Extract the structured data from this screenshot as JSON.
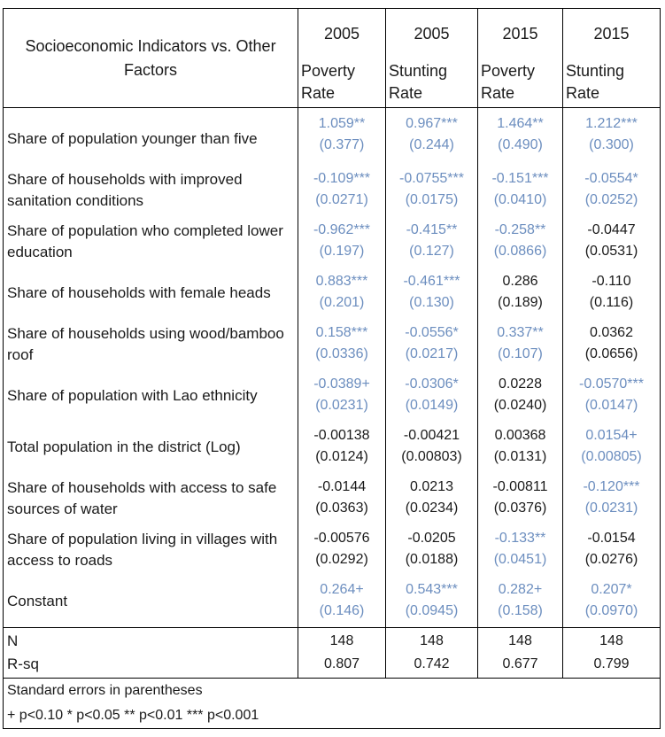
{
  "header": {
    "label": "Socioeconomic Indicators vs. Other Factors",
    "years": [
      "2005",
      "2005",
      "2015",
      "2015"
    ],
    "subheads": [
      "Poverty Rate",
      "Stunting Rate",
      "Poverty Rate",
      "Stunting Rate"
    ]
  },
  "rows": [
    {
      "label": "Share of population younger than five",
      "cells": [
        {
          "coef": "1.059**",
          "se": "(0.377)",
          "sig": true
        },
        {
          "coef": "0.967***",
          "se": "(0.244)",
          "sig": true
        },
        {
          "coef": "1.464**",
          "se": "(0.490)",
          "sig": true
        },
        {
          "coef": "1.212***",
          "se": "(0.300)",
          "sig": true
        }
      ]
    },
    {
      "label": "Share of households with improved sanitation conditions",
      "cells": [
        {
          "coef": "-0.109***",
          "se": "(0.0271)",
          "sig": true
        },
        {
          "coef": "-0.0755***",
          "se": "(0.0175)",
          "sig": true
        },
        {
          "coef": "-0.151***",
          "se": "(0.0410)",
          "sig": true
        },
        {
          "coef": "-0.0554*",
          "se": "(0.0252)",
          "sig": true
        }
      ]
    },
    {
      "label": "Share of population who completed lower education",
      "cells": [
        {
          "coef": "-0.962***",
          "se": "(0.197)",
          "sig": true
        },
        {
          "coef": "-0.415**",
          "se": "(0.127)",
          "sig": true
        },
        {
          "coef": "-0.258**",
          "se": "(0.0866)",
          "sig": true
        },
        {
          "coef": "-0.0447",
          "se": "(0.0531)",
          "sig": false
        }
      ]
    },
    {
      "label": "Share of households with female heads",
      "cells": [
        {
          "coef": "0.883***",
          "se": "(0.201)",
          "sig": true
        },
        {
          "coef": "-0.461***",
          "se": "(0.130)",
          "sig": true
        },
        {
          "coef": "0.286",
          "se": "(0.189)",
          "sig": false
        },
        {
          "coef": "-0.110",
          "se": "(0.116)",
          "sig": false
        }
      ]
    },
    {
      "label": "Share of households using wood/bamboo roof",
      "cells": [
        {
          "coef": "0.158***",
          "se": "(0.0336)",
          "sig": true
        },
        {
          "coef": "-0.0556*",
          "se": "(0.0217)",
          "sig": true
        },
        {
          "coef": "0.337**",
          "se": "(0.107)",
          "sig": true
        },
        {
          "coef": "0.0362",
          "se": "(0.0656)",
          "sig": false
        }
      ]
    },
    {
      "label": "Share of population with Lao ethnicity",
      "cells": [
        {
          "coef": "-0.0389+",
          "se": "(0.0231)",
          "sig": true
        },
        {
          "coef": "-0.0306*",
          "se": "(0.0149)",
          "sig": true
        },
        {
          "coef": "0.0228",
          "se": "(0.0240)",
          "sig": false
        },
        {
          "coef": "-0.0570***",
          "se": "(0.0147)",
          "sig": true
        }
      ]
    },
    {
      "label": "Total population in the district (Log)",
      "cells": [
        {
          "coef": "-0.00138",
          "se": "(0.0124)",
          "sig": false
        },
        {
          "coef": "-0.00421",
          "se": "(0.00803)",
          "sig": false
        },
        {
          "coef": "0.00368",
          "se": "(0.0131)",
          "sig": false
        },
        {
          "coef": "0.0154+",
          "se": "(0.00805)",
          "sig": true
        }
      ]
    },
    {
      "label": "Share of households with access to safe sources of water",
      "cells": [
        {
          "coef": "-0.0144",
          "se": "(0.0363)",
          "sig": false
        },
        {
          "coef": "0.0213",
          "se": "(0.0234)",
          "sig": false
        },
        {
          "coef": "-0.00811",
          "se": "(0.0376)",
          "sig": false
        },
        {
          "coef": "-0.120***",
          "se": "(0.0231)",
          "sig": true
        }
      ]
    },
    {
      "label": "Share of population living in villages with access to roads",
      "cells": [
        {
          "coef": "-0.00576",
          "se": "(0.0292)",
          "sig": false
        },
        {
          "coef": "-0.0205",
          "se": "(0.0188)",
          "sig": false
        },
        {
          "coef": "-0.133**",
          "se": "(0.0451)",
          "sig": true
        },
        {
          "coef": "-0.0154",
          "se": "(0.0276)",
          "sig": false
        }
      ]
    },
    {
      "label": "Constant",
      "cells": [
        {
          "coef": "0.264+",
          "se": "(0.146)",
          "sig": true
        },
        {
          "coef": "0.543***",
          "se": "(0.0945)",
          "sig": true
        },
        {
          "coef": "0.282+",
          "se": "(0.158)",
          "sig": true
        },
        {
          "coef": "0.207*",
          "se": "(0.0970)",
          "sig": true
        }
      ]
    }
  ],
  "stats": [
    {
      "label": "N",
      "values": [
        "148",
        "148",
        "148",
        "148"
      ]
    },
    {
      "label": "R-sq",
      "values": [
        "0.807",
        "0.742",
        "0.677",
        "0.799"
      ]
    }
  ],
  "notes": [
    "Standard errors in parentheses",
    "+ p<0.10 * p<0.05 ** p<0.01 *** p<0.001"
  ],
  "colors": {
    "significant": "#6c8ebf",
    "default": "#1a1a1a"
  }
}
